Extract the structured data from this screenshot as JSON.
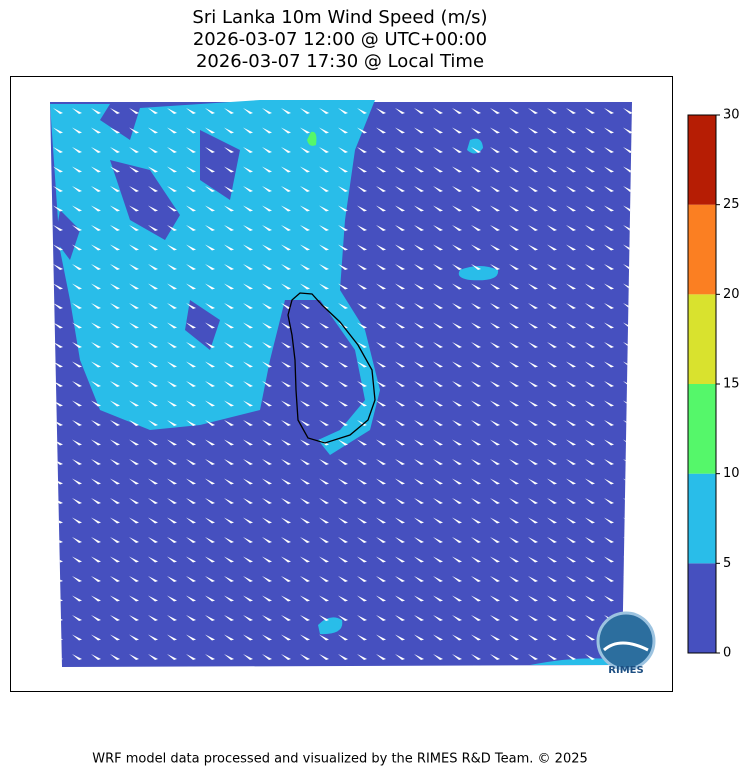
{
  "title": [
    "Sri Lanka 10m Wind Speed (m/s)",
    "2026-03-07 12:00 @ UTC+00:00",
    "2026-03-07 17:30 @ Local Time"
  ],
  "colorbar": {
    "lim": [
      0,
      30
    ],
    "ticks": [
      0,
      5,
      10,
      15,
      20,
      25,
      30
    ],
    "colors": [
      "#4650bf",
      "#29bde9",
      "#55f76a",
      "#d9e22e",
      "#fb7f22",
      "#b61d04"
    ]
  },
  "logo_text": "RIMES",
  "footer": "WRF model data processed and visualized by the RIMES R&D Team. © 2025"
}
